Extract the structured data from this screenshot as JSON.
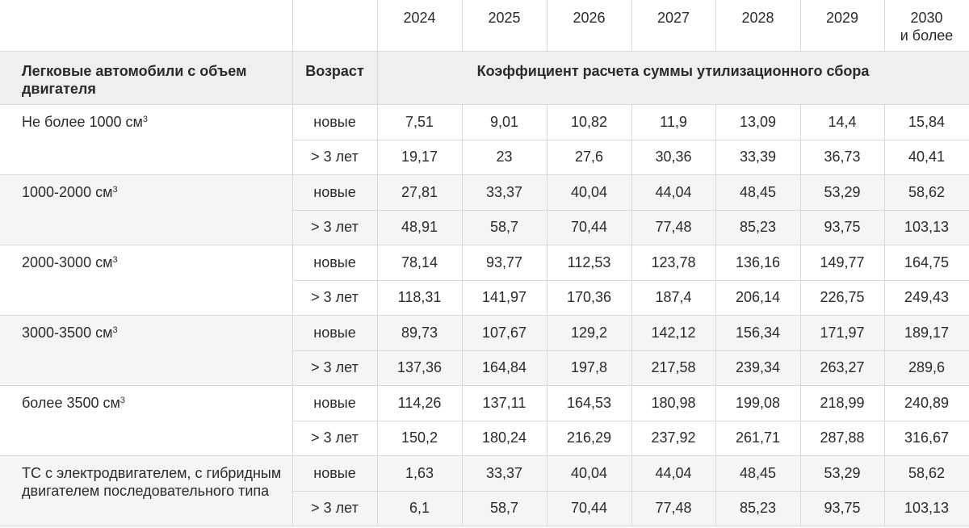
{
  "header_years": [
    "2024",
    "2025",
    "2026",
    "2027",
    "2028",
    "2029",
    "2030"
  ],
  "header_year_last_sub": "и более",
  "columns": {
    "category": "Легковые автомобили с объем двигателя",
    "age": "Возраст",
    "coefficient": "Коэффициент расчета суммы утилизационного сбора"
  },
  "age_labels": {
    "new": "новые",
    "old": "> 3 лет"
  },
  "groups": [
    {
      "label": "Не более 1000 см³",
      "new": [
        "7,51",
        "9,01",
        "10,82",
        "11,9",
        "13,09",
        "14,4",
        "15,84"
      ],
      "old": [
        "19,17",
        "23",
        "27,6",
        "30,36",
        "33,39",
        "36,73",
        "40,41"
      ]
    },
    {
      "label": "1000-2000 см³",
      "new": [
        "27,81",
        "33,37",
        "40,04",
        "44,04",
        "48,45",
        "53,29",
        "58,62"
      ],
      "old": [
        "48,91",
        "58,7",
        "70,44",
        "77,48",
        "85,23",
        "93,75",
        "103,13"
      ]
    },
    {
      "label": "2000-3000 см³",
      "new": [
        "78,14",
        "93,77",
        "112,53",
        "123,78",
        "136,16",
        "149,77",
        "164,75"
      ],
      "old": [
        "118,31",
        "141,97",
        "170,36",
        "187,4",
        "206,14",
        "226,75",
        "249,43"
      ]
    },
    {
      "label": "3000-3500 см³",
      "new": [
        "89,73",
        "107,67",
        "129,2",
        "142,12",
        "156,34",
        "171,97",
        "189,17"
      ],
      "old": [
        "137,36",
        "164,84",
        "197,8",
        "217,58",
        "239,34",
        "263,27",
        "289,6"
      ]
    },
    {
      "label": "более 3500 см³",
      "new": [
        "114,26",
        "137,11",
        "164,53",
        "180,98",
        "199,08",
        "218,99",
        "240,89"
      ],
      "old": [
        "150,2",
        "180,24",
        "216,29",
        "237,92",
        "261,71",
        "287,88",
        "316,67"
      ]
    },
    {
      "label": "ТС с электродвигателем, с гибридным двигателем последовательного типа",
      "new": [
        "1,63",
        "33,37",
        "40,04",
        "44,04",
        "48,45",
        "53,29",
        "58,62"
      ],
      "old": [
        "6,1",
        "58,7",
        "70,44",
        "77,48",
        "85,23",
        "93,75",
        "103,13"
      ]
    }
  ]
}
